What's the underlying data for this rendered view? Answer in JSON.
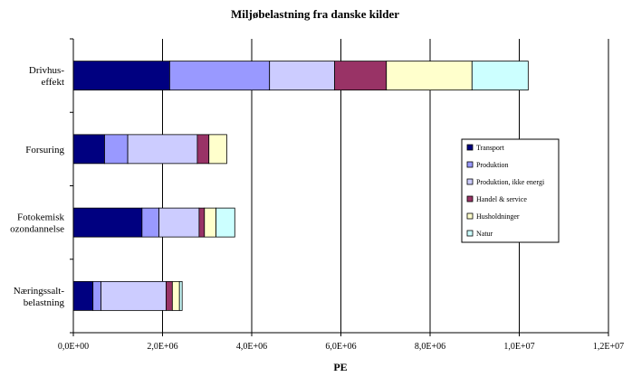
{
  "chart_data": {
    "type": "stacked-horizontal-bar",
    "title": "Miljøbelastning fra danske kilder",
    "xlabel": "PE",
    "ylabel": "",
    "xlim": [
      0,
      12000000
    ],
    "x_ticks": [
      0,
      2000000,
      4000000,
      6000000,
      8000000,
      10000000,
      12000000
    ],
    "x_tick_labels": [
      "0,0E+00",
      "2,0E+06",
      "4,0E+06",
      "6,0E+06",
      "8,0E+06",
      "1,0E+07",
      "1,2E+07"
    ],
    "grid": "vertical",
    "legend_position": "right",
    "categories": [
      [
        "Drivhus-",
        "effekt"
      ],
      [
        "Forsuring"
      ],
      [
        "Fotokemisk",
        "ozondannelse"
      ],
      [
        "Næringssalt-",
        "belastning"
      ]
    ],
    "series": [
      {
        "name": "Transport",
        "color": "#000080",
        "values": [
          2160000,
          700000,
          1540000,
          440000
        ]
      },
      {
        "name": "Produktion",
        "color": "#9999ff",
        "values": [
          2240000,
          520000,
          380000,
          180000
        ]
      },
      {
        "name": "Produktion, ikke energi",
        "color": "#ccccff",
        "values": [
          1460000,
          1560000,
          900000,
          1460000
        ]
      },
      {
        "name": "Handel & service",
        "color": "#993366",
        "values": [
          1160000,
          260000,
          120000,
          140000
        ]
      },
      {
        "name": "Husholdninger",
        "color": "#ffffcc",
        "values": [
          1920000,
          400000,
          260000,
          160000
        ]
      },
      {
        "name": "Natur",
        "color": "#ccffff",
        "values": [
          1260000,
          0,
          420000,
          60000
        ]
      }
    ]
  }
}
